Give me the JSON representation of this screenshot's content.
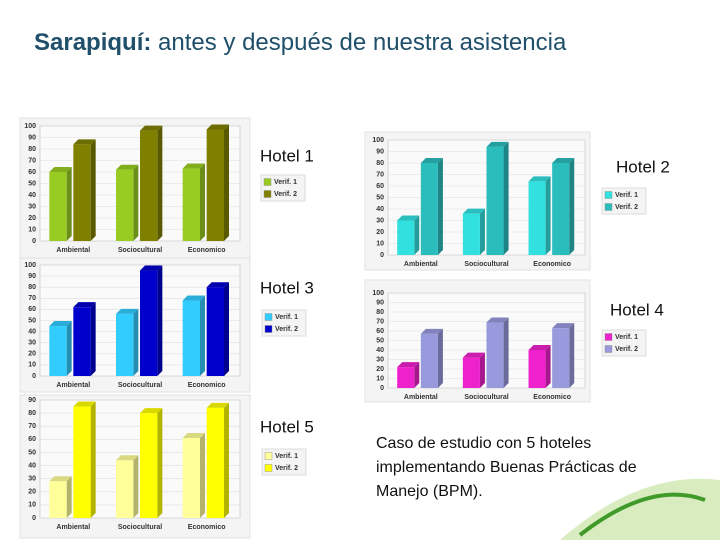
{
  "slide_title": {
    "bold": "Sarapiquí:",
    "rest": "antes y después de nuestra asistencia"
  },
  "caption": "Caso de estudio con 5 hoteles implementando Buenas Prácticas de Manejo (BPM).",
  "chart_data": [
    {
      "type": "bar",
      "title": "Hotel 1",
      "categories": [
        "Ambiental",
        "Sociocultural",
        "Economico"
      ],
      "series": [
        {
          "name": "Verif. 1",
          "color": "#99cc22",
          "values": [
            60,
            62,
            63
          ]
        },
        {
          "name": "Verif. 2",
          "color": "#7f7f00",
          "values": [
            84,
            96,
            97
          ]
        }
      ],
      "ylim": [
        0,
        100
      ],
      "yticks": [
        0,
        10,
        20,
        30,
        40,
        50,
        60,
        70,
        80,
        90,
        100
      ],
      "grid": true
    },
    {
      "type": "bar",
      "title": "Hotel 2",
      "categories": [
        "Ambiental",
        "Sociocultural",
        "Economico"
      ],
      "series": [
        {
          "name": "Verif. 1",
          "color": "#33e0e0",
          "values": [
            30,
            36,
            64
          ]
        },
        {
          "name": "Verif. 2",
          "color": "#2bbcbc",
          "values": [
            80,
            94,
            80
          ]
        }
      ],
      "ylim": [
        0,
        100
      ],
      "yticks": [
        0,
        10,
        20,
        30,
        40,
        50,
        60,
        70,
        80,
        90,
        100
      ],
      "grid": true
    },
    {
      "type": "bar",
      "title": "Hotel 3",
      "categories": [
        "Ambiental",
        "Sociocultural",
        "Economico"
      ],
      "series": [
        {
          "name": "Verif. 1",
          "color": "#33ccff",
          "values": [
            45,
            56,
            68
          ]
        },
        {
          "name": "Verif. 2",
          "color": "#0000cc",
          "values": [
            62,
            95,
            80
          ]
        }
      ],
      "ylim": [
        0,
        100
      ],
      "yticks": [
        0,
        10,
        20,
        30,
        40,
        50,
        60,
        70,
        80,
        90,
        100
      ],
      "grid": true
    },
    {
      "type": "bar",
      "title": "Hotel 4",
      "categories": [
        "Ambiental",
        "Sociocultural",
        "Economico"
      ],
      "series": [
        {
          "name": "Verif. 1",
          "color": "#ee22cc",
          "values": [
            22,
            32,
            40
          ]
        },
        {
          "name": "Verif. 2",
          "color": "#9999dd",
          "values": [
            57,
            69,
            63
          ]
        }
      ],
      "ylim": [
        0,
        100
      ],
      "yticks": [
        0,
        10,
        20,
        30,
        40,
        50,
        60,
        70,
        80,
        90,
        100
      ],
      "grid": true
    },
    {
      "type": "bar",
      "title": "Hotel 5",
      "categories": [
        "Ambiental",
        "Sociocultural",
        "Economico"
      ],
      "series": [
        {
          "name": "Verif. 1",
          "color": "#ffff99",
          "values": [
            28,
            44,
            61
          ]
        },
        {
          "name": "Verif. 2",
          "color": "#ffff00",
          "values": [
            85,
            80,
            84
          ]
        }
      ],
      "ylim": [
        0,
        90
      ],
      "yticks": [
        0,
        10,
        20,
        30,
        40,
        50,
        60,
        70,
        80,
        90
      ],
      "grid": true
    }
  ]
}
